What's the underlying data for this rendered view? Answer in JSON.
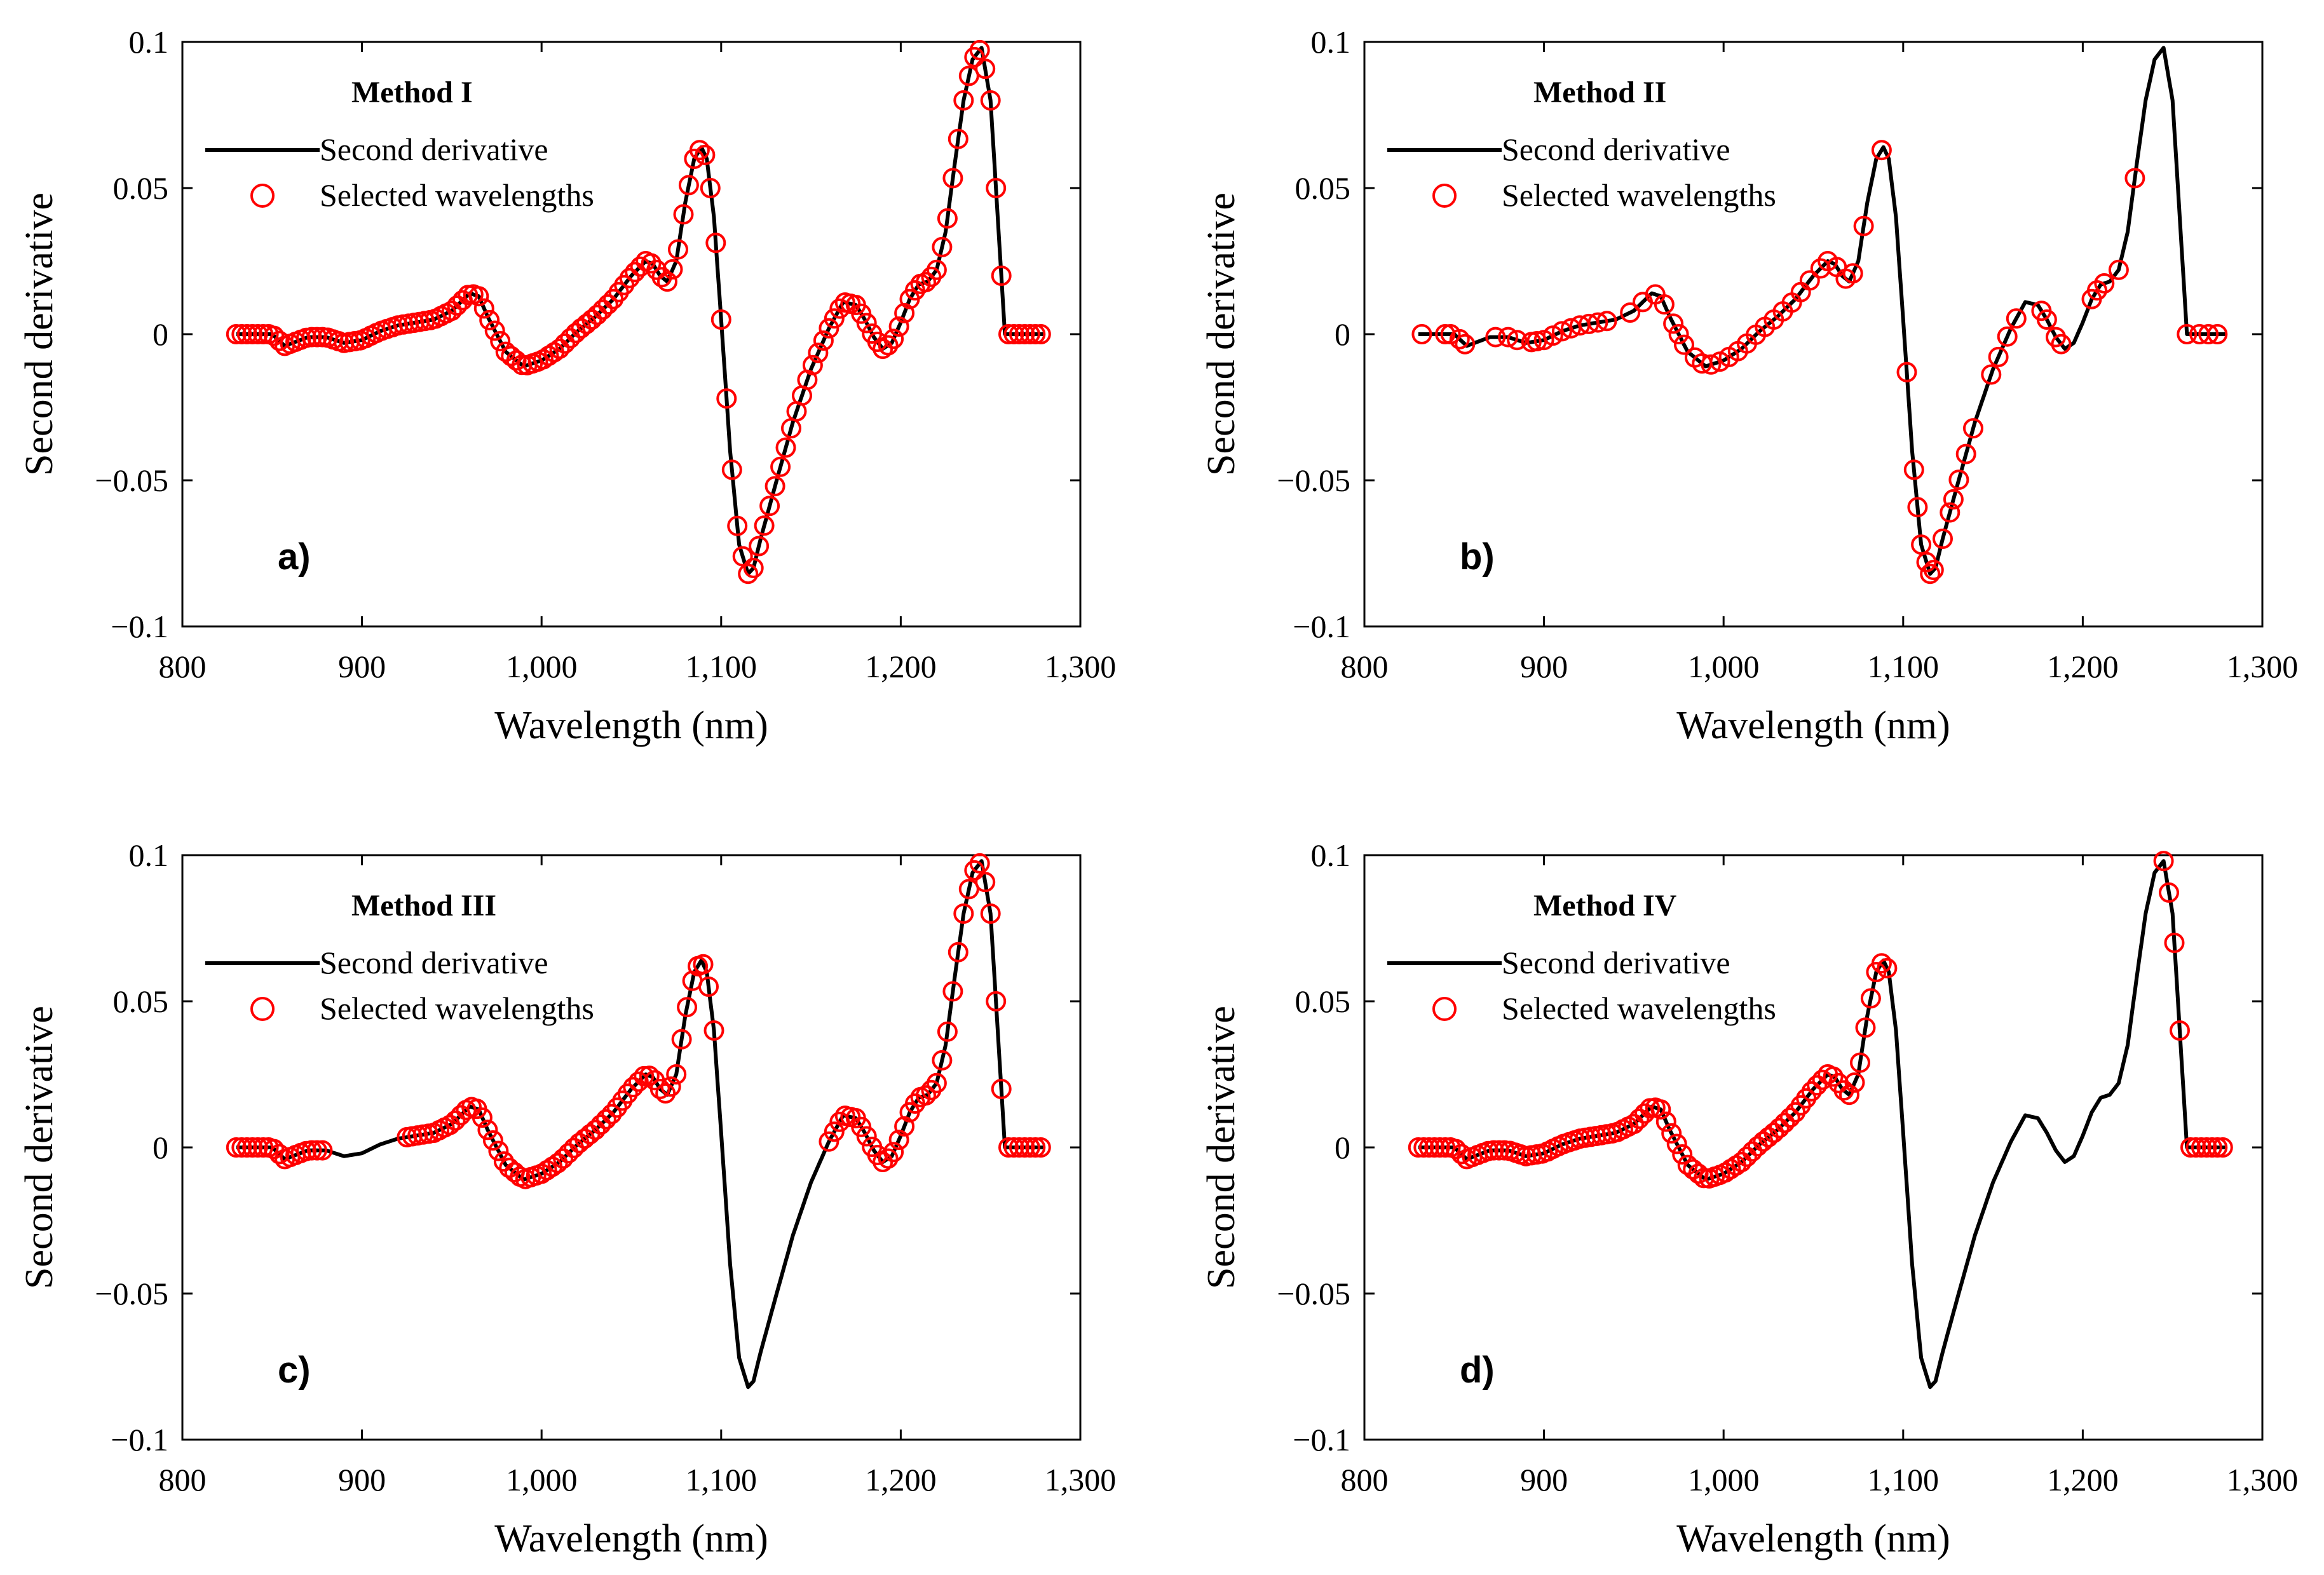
{
  "chart_data": [
    {
      "type": "line",
      "panel_label": "a)",
      "legend_title": "Method I",
      "xlabel": "Wavelength (nm)",
      "ylabel": "Second derivative",
      "xlim": [
        800,
        1300
      ],
      "ylim": [
        -0.1,
        0.1
      ],
      "x_ticks": [
        "800",
        "900",
        "1,000",
        "1,100",
        "1,200",
        "1,300"
      ],
      "y_ticks": [
        "−0.1",
        "−0.05",
        "0",
        "0.05",
        "0.1"
      ],
      "legend": [
        "Second derivative",
        "Selected wavelengths"
      ],
      "legend_position": "top-left",
      "selected_ranges": [
        [
          830,
          1256
        ],
        [
          1260,
          1278
        ]
      ]
    },
    {
      "type": "line",
      "panel_label": "b)",
      "legend_title": "Method II",
      "xlabel": "Wavelength (nm)",
      "ylabel": "Second derivative",
      "xlim": [
        800,
        1300
      ],
      "ylim": [
        -0.1,
        0.1
      ],
      "x_ticks": [
        "800",
        "900",
        "1,000",
        "1,100",
        "1,200",
        "1,300"
      ],
      "y_ticks": [
        "−0.1",
        "−0.05",
        "0",
        "0.05",
        "0.1"
      ],
      "legend": [
        "Second derivative",
        "Selected wavelengths"
      ],
      "legend_position": "top-left",
      "selected_x": [
        832,
        845,
        848,
        853,
        856,
        873,
        880,
        885,
        893,
        896,
        900,
        905,
        910,
        915,
        920,
        925,
        930,
        935,
        948,
        955,
        962,
        967,
        972,
        975,
        978,
        984,
        988,
        993,
        998,
        1003,
        1008,
        1013,
        1018,
        1023,
        1028,
        1033,
        1038,
        1043,
        1048,
        1054,
        1058,
        1063,
        1068,
        1072,
        1078,
        1088,
        1102,
        1106,
        1108,
        1110,
        1113,
        1115,
        1117,
        1122,
        1126,
        1128,
        1131,
        1135,
        1139,
        1149,
        1153,
        1158,
        1163,
        1177,
        1180,
        1185,
        1188,
        1205,
        1208,
        1212,
        1220,
        1229,
        1258,
        1265,
        1270,
        1275
      ]
    },
    {
      "type": "line",
      "panel_label": "c)",
      "legend_title": "Method III",
      "xlabel": "Wavelength (nm)",
      "ylabel": "Second derivative",
      "xlim": [
        800,
        1300
      ],
      "ylim": [
        -0.1,
        0.1
      ],
      "x_ticks": [
        "800",
        "900",
        "1,000",
        "1,100",
        "1,200",
        "1,300"
      ],
      "y_ticks": [
        "−0.1",
        "−0.05",
        "0",
        "0.05",
        "0.1"
      ],
      "legend": [
        "Second derivative",
        "Selected wavelengths"
      ],
      "legend_position": "top-left",
      "selected_ranges": [
        [
          830,
          878
        ],
        [
          925,
          1097
        ],
        [
          1160,
          1256
        ],
        [
          1260,
          1278
        ]
      ]
    },
    {
      "type": "line",
      "panel_label": "d)",
      "legend_title": "Method IV",
      "xlabel": "Wavelength (nm)",
      "ylabel": "Second derivative",
      "xlim": [
        800,
        1300
      ],
      "ylim": [
        -0.1,
        0.1
      ],
      "x_ticks": [
        "800",
        "900",
        "1,000",
        "1,100",
        "1,200",
        "1,300"
      ],
      "y_ticks": [
        "−0.1",
        "−0.05",
        "0",
        "0.05",
        "0.1"
      ],
      "legend": [
        "Second derivative",
        "Selected wavelengths"
      ],
      "legend_position": "top-left",
      "selected_ranges": [
        [
          830,
          1092
        ],
        [
          1245,
          1256
        ],
        [
          1260,
          1278
        ]
      ]
    }
  ],
  "curve": {
    "x": [
      830,
      850,
      857,
      870,
      880,
      890,
      900,
      910,
      920,
      930,
      940,
      950,
      960,
      965,
      970,
      980,
      990,
      1000,
      1010,
      1020,
      1030,
      1040,
      1050,
      1058,
      1062,
      1066,
      1070,
      1075,
      1080,
      1085,
      1089,
      1092,
      1096,
      1100,
      1105,
      1110,
      1115,
      1118,
      1122,
      1130,
      1140,
      1150,
      1160,
      1168,
      1175,
      1180,
      1185,
      1190,
      1195,
      1200,
      1205,
      1210,
      1215,
      1220,
      1225,
      1230,
      1235,
      1240,
      1245,
      1250,
      1253,
      1256,
      1258,
      1262,
      1270,
      1280
    ],
    "y": [
      0.0,
      0.0,
      -0.004,
      -0.001,
      -0.001,
      -0.003,
      -0.002,
      0.001,
      0.003,
      0.004,
      0.005,
      0.008,
      0.014,
      0.013,
      0.006,
      -0.006,
      -0.011,
      -0.009,
      -0.005,
      0.001,
      0.006,
      0.012,
      0.02,
      0.025,
      0.024,
      0.02,
      0.018,
      0.025,
      0.045,
      0.06,
      0.064,
      0.06,
      0.04,
      0.005,
      -0.04,
      -0.072,
      -0.082,
      -0.08,
      -0.07,
      -0.052,
      -0.03,
      -0.012,
      0.002,
      0.011,
      0.01,
      0.005,
      -0.001,
      -0.005,
      -0.003,
      0.004,
      0.012,
      0.017,
      0.018,
      0.022,
      0.035,
      0.058,
      0.08,
      0.094,
      0.098,
      0.08,
      0.05,
      0.02,
      0.0,
      0.0,
      0.0,
      0.0
    ]
  },
  "style": {
    "line_color": "#000000",
    "marker_color": "#ff0000"
  }
}
